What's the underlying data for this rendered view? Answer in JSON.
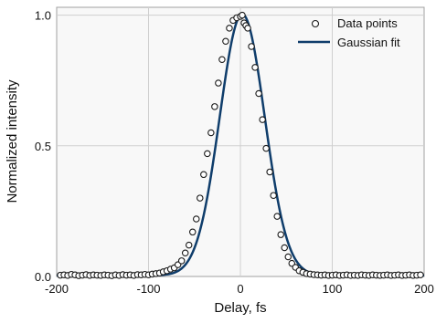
{
  "chart_data": {
    "type": "scatter",
    "title": "",
    "xlabel": "Delay, fs",
    "ylabel": "Normalized intensity",
    "xlim": [
      -200,
      200
    ],
    "ylim": [
      0,
      1.03
    ],
    "xticks": [
      -200,
      -100,
      0,
      100,
      200
    ],
    "yticks": [
      0.0,
      0.5,
      1.0
    ],
    "xtick_labels": [
      "-200",
      "-100",
      "0",
      "100",
      "200"
    ],
    "ytick_labels": [
      "0.0",
      "0.5",
      "1.0"
    ],
    "grid": true,
    "legend_position": "top-right",
    "series": [
      {
        "name": "Data points",
        "kind": "scatter",
        "color": "#1a1a1a",
        "x": [
          -196,
          -192,
          -188,
          -184,
          -180,
          -176,
          -172,
          -168,
          -164,
          -160,
          -156,
          -152,
          -148,
          -144,
          -140,
          -136,
          -132,
          -128,
          -124,
          -120,
          -116,
          -112,
          -108,
          -104,
          -100,
          -96,
          -92,
          -88,
          -84,
          -80,
          -76,
          -72,
          -68,
          -64,
          -60,
          -56,
          -52,
          -48,
          -44,
          -40,
          -36,
          -32,
          -28,
          -24,
          -20,
          -16,
          -12,
          -8,
          -4,
          0,
          2,
          4,
          6,
          8,
          12,
          16,
          20,
          24,
          28,
          32,
          36,
          40,
          44,
          48,
          52,
          56,
          60,
          64,
          68,
          72,
          76,
          80,
          84,
          88,
          92,
          96,
          100,
          104,
          108,
          112,
          116,
          120,
          124,
          128,
          132,
          136,
          140,
          144,
          148,
          152,
          156,
          160,
          164,
          168,
          172,
          176,
          180,
          184,
          188,
          192,
          196
        ],
        "y": [
          0.005,
          0.006,
          0.004,
          0.008,
          0.006,
          0.003,
          0.005,
          0.007,
          0.004,
          0.006,
          0.005,
          0.004,
          0.006,
          0.005,
          0.003,
          0.006,
          0.004,
          0.007,
          0.005,
          0.006,
          0.004,
          0.007,
          0.006,
          0.008,
          0.006,
          0.009,
          0.011,
          0.013,
          0.018,
          0.022,
          0.028,
          0.033,
          0.045,
          0.06,
          0.09,
          0.12,
          0.17,
          0.22,
          0.3,
          0.39,
          0.47,
          0.55,
          0.65,
          0.74,
          0.83,
          0.9,
          0.95,
          0.98,
          0.99,
          0.995,
          1.0,
          0.97,
          0.96,
          0.95,
          0.88,
          0.8,
          0.7,
          0.6,
          0.49,
          0.4,
          0.31,
          0.23,
          0.16,
          0.11,
          0.075,
          0.05,
          0.035,
          0.022,
          0.016,
          0.011,
          0.009,
          0.007,
          0.006,
          0.005,
          0.006,
          0.004,
          0.005,
          0.006,
          0.004,
          0.005,
          0.006,
          0.004,
          0.005,
          0.004,
          0.006,
          0.005,
          0.004,
          0.006,
          0.005,
          0.004,
          0.005,
          0.006,
          0.004,
          0.005,
          0.006,
          0.004,
          0.005,
          0.006,
          0.004,
          0.005,
          0.006
        ]
      },
      {
        "name": "Gaussian fit",
        "kind": "line",
        "color": "#0f3d6b",
        "model": {
          "center": 2,
          "sigma": 24.5,
          "amplitude": 1.0,
          "baseline": 0.004
        }
      }
    ]
  }
}
